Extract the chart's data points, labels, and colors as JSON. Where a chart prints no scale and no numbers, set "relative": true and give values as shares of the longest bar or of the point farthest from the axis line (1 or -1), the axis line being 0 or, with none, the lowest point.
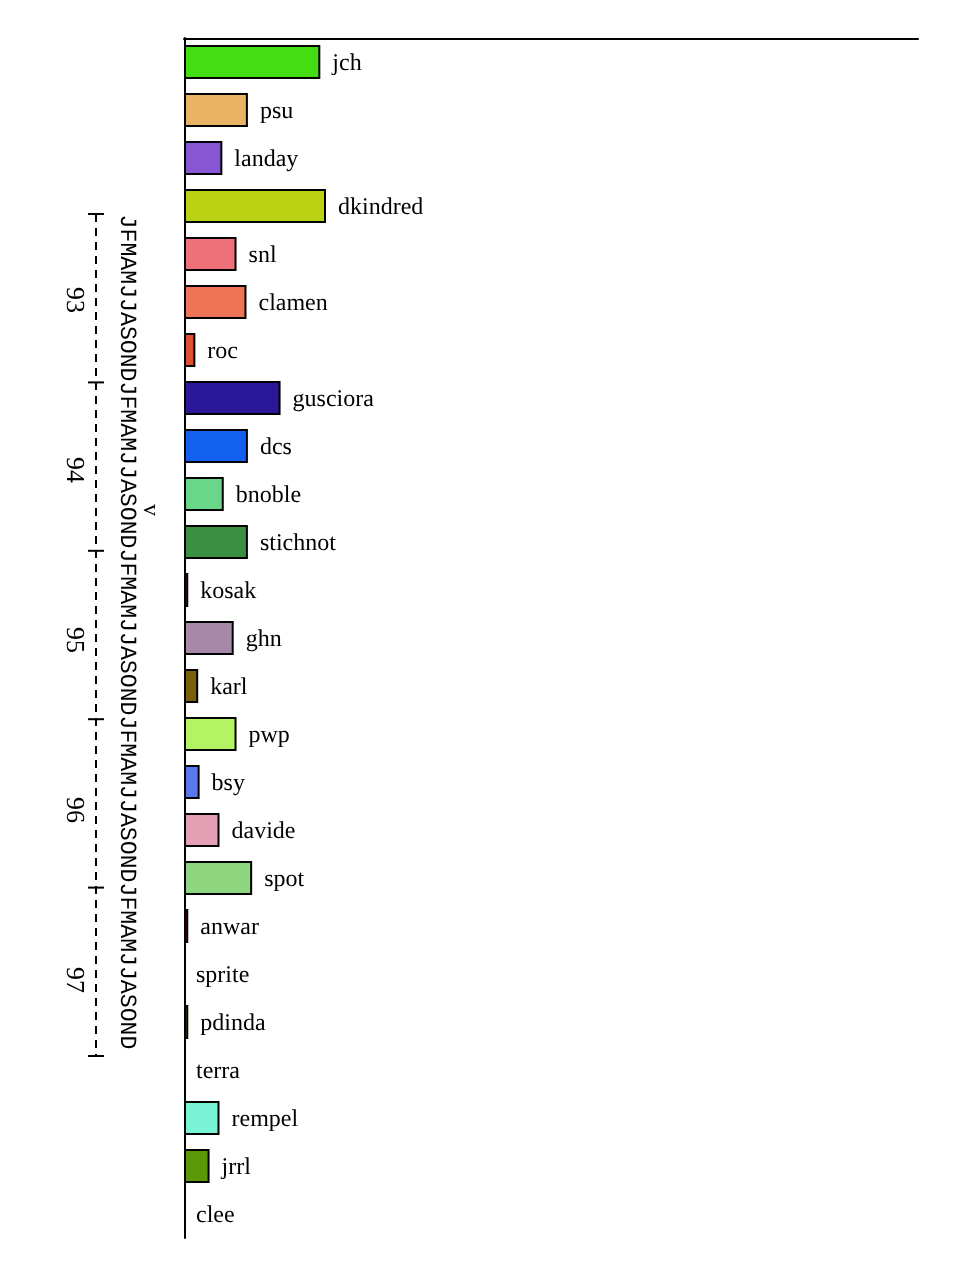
{
  "chart_data": {
    "type": "bar",
    "orientation": "horizontal",
    "relative": true,
    "categories": [
      "jch",
      "psu",
      "landay",
      "dkindred",
      "snl",
      "clamen",
      "roc",
      "gusciora",
      "dcs",
      "bnoble",
      "stichnot",
      "kosak",
      "ghn",
      "karl",
      "pwp",
      "bsy",
      "davide",
      "spot",
      "anwar",
      "sprite",
      "pdinda",
      "terra",
      "rempel",
      "jrrl",
      "clee"
    ],
    "values": [
      0.96,
      0.45,
      0.27,
      1,
      0.37,
      0.44,
      0.08,
      0.68,
      0.45,
      0.28,
      0.45,
      0.03,
      0.35,
      0.1,
      0.37,
      0.11,
      0.25,
      0.48,
      0.03,
      0,
      0.03,
      0,
      0.25,
      0.18,
      0
    ],
    "colors": [
      "#44dd14",
      "#e8b464",
      "#8855d5",
      "#bbd214",
      "#ee7078",
      "#ee7458",
      "#dd5030",
      "#2a1898",
      "#1460f0",
      "#6ad68a",
      "#3a9040",
      "#a0306a",
      "#a888a8",
      "#7a6008",
      "#b4f464",
      "#5a78ee",
      "#e4a0b4",
      "#8ed680",
      "#b01030",
      "#888888",
      "#60b030",
      "#888888",
      "#78f4d4",
      "#5a9808",
      "#888888"
    ],
    "annotations": [
      "93",
      "94",
      "95",
      "96",
      "97",
      "JFMAMJJASONDJFMAMJJASONDJFMAMJJASONDJFMAMJJASONDJFMAMJJASOND",
      "v"
    ],
    "data_labels": false
  }
}
